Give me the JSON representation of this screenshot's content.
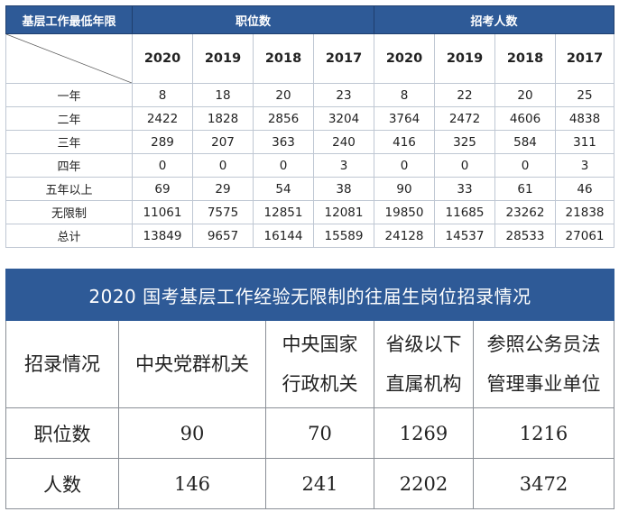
{
  "top_table": {
    "corner_label": "基层工作最低年限",
    "group_positions": "职位数",
    "group_applicants": "招考人数",
    "years": [
      "2020",
      "2019",
      "2018",
      "2017",
      "2020",
      "2019",
      "2018",
      "2017"
    ],
    "rows": [
      {
        "label": "一年",
        "values": [
          "8",
          "18",
          "20",
          "23",
          "8",
          "22",
          "20",
          "25"
        ]
      },
      {
        "label": "二年",
        "values": [
          "2422",
          "1828",
          "2856",
          "3204",
          "3764",
          "2472",
          "4606",
          "4838"
        ]
      },
      {
        "label": "三年",
        "values": [
          "289",
          "207",
          "363",
          "240",
          "416",
          "325",
          "584",
          "311"
        ]
      },
      {
        "label": "四年",
        "values": [
          "0",
          "0",
          "0",
          "3",
          "0",
          "0",
          "0",
          "3"
        ]
      },
      {
        "label": "五年以上",
        "values": [
          "69",
          "29",
          "54",
          "38",
          "90",
          "33",
          "61",
          "46"
        ]
      },
      {
        "label": "无限制",
        "values": [
          "11061",
          "7575",
          "12851",
          "12081",
          "19850",
          "11685",
          "23262",
          "21838"
        ]
      },
      {
        "label": "总计",
        "values": [
          "13849",
          "9657",
          "16144",
          "15589",
          "24128",
          "14537",
          "28533",
          "27061"
        ]
      }
    ]
  },
  "bottom_table": {
    "title": "2020 国考基层工作经验无限制的往届生岗位招录情况",
    "headers": [
      {
        "lines": [
          "招录情况"
        ]
      },
      {
        "lines": [
          "中央党群机关"
        ]
      },
      {
        "lines": [
          "中央国家",
          "行政机关"
        ]
      },
      {
        "lines": [
          "省级以下",
          "直属机构"
        ]
      },
      {
        "lines": [
          "参照公务员法",
          "管理事业单位"
        ]
      }
    ],
    "rows": [
      {
        "label": "职位数",
        "values": [
          "90",
          "70",
          "1269",
          "1216"
        ]
      },
      {
        "label": "人数",
        "values": [
          "146",
          "241",
          "2202",
          "3472"
        ]
      }
    ]
  },
  "colors": {
    "header_bg": "#2e5a97",
    "header_text": "#ffffff",
    "border": "#bfc7d3"
  }
}
